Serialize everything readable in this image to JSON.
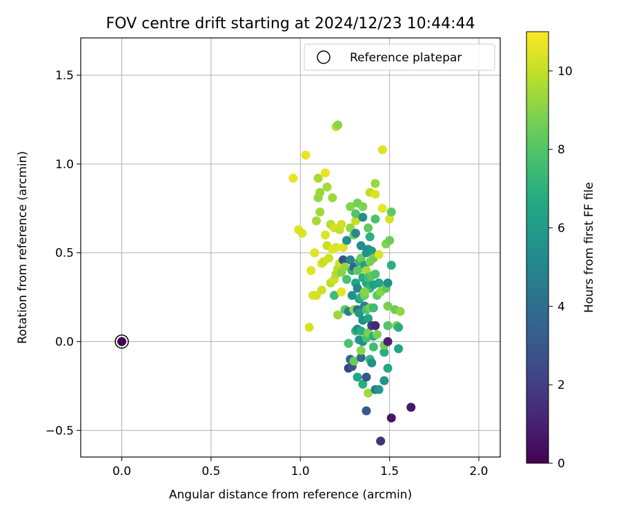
{
  "chart_data": {
    "type": "scatter",
    "title": "FOV centre drift starting at 2024/12/23 10:44:44",
    "xlabel": "Angular distance from reference (arcmin)",
    "ylabel": "Rotation from reference (arcmin)",
    "xlim": [
      -0.23,
      2.12
    ],
    "ylim": [
      -0.65,
      1.71
    ],
    "xticks": [
      0.0,
      0.5,
      1.0,
      1.5,
      2.0
    ],
    "xtick_labels": [
      "0.0",
      "0.5",
      "1.0",
      "1.5",
      "2.0"
    ],
    "yticks": [
      -0.5,
      0.0,
      0.5,
      1.0,
      1.5
    ],
    "ytick_labels": [
      "−0.5",
      "0.0",
      "0.5",
      "1.0",
      "1.5"
    ],
    "grid": true,
    "colormap": "viridis",
    "colorbar": {
      "label": "Hours from first FF file",
      "range": [
        0,
        11
      ],
      "ticks": [
        0,
        2,
        4,
        6,
        8,
        10
      ],
      "tick_labels": [
        "0",
        "2",
        "4",
        "6",
        "8",
        "10"
      ]
    },
    "legend": {
      "position": "top-right",
      "entries": [
        "Reference platepar"
      ]
    },
    "reference": {
      "x": 0.0,
      "y": 0.0,
      "c": 0.0
    },
    "points": [
      [
        0.96,
        0.92,
        10.6
      ],
      [
        0.99,
        0.63,
        10.5
      ],
      [
        1.01,
        0.61,
        10.4
      ],
      [
        1.03,
        1.05,
        10.6
      ],
      [
        1.05,
        0.08,
        10.3
      ],
      [
        1.06,
        0.4,
        10.5
      ],
      [
        1.07,
        0.26,
        10.4
      ],
      [
        1.08,
        0.5,
        10.5
      ],
      [
        1.09,
        0.26,
        10.3
      ],
      [
        1.09,
        0.68,
        9.5
      ],
      [
        1.1,
        0.81,
        9.2
      ],
      [
        1.1,
        0.92,
        9.6
      ],
      [
        1.11,
        0.84,
        9.3
      ],
      [
        1.11,
        0.73,
        9.4
      ],
      [
        1.12,
        0.29,
        10.2
      ],
      [
        1.12,
        0.44,
        10.4
      ],
      [
        1.13,
        0.45,
        10.1
      ],
      [
        1.14,
        0.6,
        10.4
      ],
      [
        1.14,
        0.95,
        10.6
      ],
      [
        1.15,
        0.54,
        10.0
      ],
      [
        1.15,
        0.87,
        9.5
      ],
      [
        1.16,
        0.47,
        10.2
      ],
      [
        1.17,
        0.33,
        9.9
      ],
      [
        1.17,
        0.66,
        9.8
      ],
      [
        1.18,
        0.52,
        10.5
      ],
      [
        1.18,
        0.81,
        9.4
      ],
      [
        1.19,
        0.26,
        7.5
      ],
      [
        1.19,
        0.35,
        10.2
      ],
      [
        1.19,
        0.64,
        10.3
      ],
      [
        1.2,
        1.21,
        10.0
      ],
      [
        1.2,
        0.38,
        9.7
      ],
      [
        1.2,
        0.53,
        10.4
      ],
      [
        1.21,
        1.22,
        9.1
      ],
      [
        1.21,
        0.15,
        9.3
      ],
      [
        1.21,
        0.41,
        9.8
      ],
      [
        1.22,
        0.44,
        10.1
      ],
      [
        1.22,
        0.63,
        10.0
      ],
      [
        1.23,
        0.66,
        10.2
      ],
      [
        1.23,
        0.28,
        10.6
      ],
      [
        1.23,
        0.39,
        9.0
      ],
      [
        1.24,
        0.46,
        2.7
      ],
      [
        1.24,
        0.53,
        10.5
      ],
      [
        1.25,
        0.42,
        9.2
      ],
      [
        1.25,
        0.18,
        8.2
      ],
      [
        1.26,
        0.57,
        5.5
      ],
      [
        1.26,
        0.35,
        7.8
      ],
      [
        1.27,
        -0.15,
        2.0
      ],
      [
        1.27,
        -0.01,
        7.8
      ],
      [
        1.27,
        0.17,
        4.8
      ],
      [
        1.28,
        -0.1,
        3.5
      ],
      [
        1.28,
        0.64,
        9.2
      ],
      [
        1.28,
        0.76,
        9.0
      ],
      [
        1.28,
        0.46,
        5.0
      ],
      [
        1.29,
        -0.14,
        2.8
      ],
      [
        1.29,
        0.26,
        5.5
      ],
      [
        1.29,
        0.4,
        7.0
      ],
      [
        1.3,
        -0.11,
        8.5
      ],
      [
        1.3,
        0.18,
        9.3
      ],
      [
        1.3,
        0.42,
        3.5
      ],
      [
        1.3,
        0.6,
        8.8
      ],
      [
        1.31,
        0.06,
        7.2
      ],
      [
        1.31,
        0.33,
        6.5
      ],
      [
        1.31,
        0.61,
        5.2
      ],
      [
        1.31,
        0.68,
        10.0
      ],
      [
        1.31,
        0.72,
        8.0
      ],
      [
        1.32,
        -0.2,
        6.5
      ],
      [
        1.32,
        0.07,
        5.5
      ],
      [
        1.32,
        0.18,
        4.2
      ],
      [
        1.32,
        0.3,
        5.0
      ],
      [
        1.32,
        0.4,
        8.2
      ],
      [
        1.32,
        0.78,
        8.6
      ],
      [
        1.33,
        0.01,
        5.8
      ],
      [
        1.33,
        0.16,
        6.0
      ],
      [
        1.33,
        0.45,
        7.2
      ],
      [
        1.33,
        0.24,
        6.0
      ],
      [
        1.34,
        -0.09,
        3.8
      ],
      [
        1.34,
        -0.05,
        9.0
      ],
      [
        1.34,
        0.06,
        6.8
      ],
      [
        1.34,
        0.25,
        7.0
      ],
      [
        1.34,
        0.47,
        8.5
      ],
      [
        1.35,
        -0.24,
        6.8
      ],
      [
        1.35,
        0.0,
        5.5
      ],
      [
        1.35,
        0.12,
        5.3
      ],
      [
        1.35,
        0.36,
        6.8
      ],
      [
        1.35,
        0.7,
        5.3
      ],
      [
        1.35,
        0.76,
        8.9
      ],
      [
        1.36,
        0.2,
        4.7
      ],
      [
        1.36,
        0.26,
        8.6
      ],
      [
        1.36,
        0.43,
        6.2
      ],
      [
        1.37,
        -0.2,
        3.0
      ],
      [
        1.37,
        -0.39,
        3.0
      ],
      [
        1.37,
        0.02,
        7.8
      ],
      [
        1.37,
        0.18,
        7.9
      ],
      [
        1.37,
        0.33,
        6.7
      ],
      [
        1.37,
        0.4,
        9.6
      ],
      [
        1.37,
        0.5,
        5.8
      ],
      [
        1.38,
        -0.29,
        9.4
      ],
      [
        1.38,
        0.05,
        8.8
      ],
      [
        1.38,
        0.13,
        6.4
      ],
      [
        1.38,
        0.36,
        7.6
      ],
      [
        1.38,
        0.52,
        5.4
      ],
      [
        1.38,
        0.64,
        8.3
      ],
      [
        1.39,
        -0.1,
        7.2
      ],
      [
        1.39,
        0.19,
        8.6
      ],
      [
        1.39,
        0.3,
        7.4
      ],
      [
        1.39,
        0.45,
        8.8
      ],
      [
        1.39,
        0.59,
        7.0
      ],
      [
        1.39,
        0.84,
        9.9
      ],
      [
        1.4,
        -0.12,
        5.5
      ],
      [
        1.4,
        0.09,
        2.0
      ],
      [
        1.4,
        0.37,
        8.2
      ],
      [
        1.4,
        0.51,
        6.0
      ],
      [
        1.41,
        -0.03,
        7.6
      ],
      [
        1.41,
        0.03,
        6.8
      ],
      [
        1.41,
        0.19,
        7.5
      ],
      [
        1.41,
        0.32,
        6.2
      ],
      [
        1.41,
        0.47,
        8.6
      ],
      [
        1.42,
        -0.27,
        4.5
      ],
      [
        1.42,
        0.09,
        1.2
      ],
      [
        1.42,
        0.38,
        7.9
      ],
      [
        1.42,
        0.69,
        7.8
      ],
      [
        1.42,
        0.89,
        9.3
      ],
      [
        1.42,
        0.83,
        10.4
      ],
      [
        1.43,
        0.04,
        8.8
      ],
      [
        1.43,
        0.26,
        8.2
      ],
      [
        1.44,
        -0.27,
        6.0
      ],
      [
        1.44,
        0.33,
        6.5
      ],
      [
        1.44,
        0.49,
        10.4
      ],
      [
        1.45,
        -0.56,
        1.5
      ],
      [
        1.45,
        0.28,
        9.0
      ],
      [
        1.46,
        1.08,
        10.5
      ],
      [
        1.46,
        0.75,
        10.6
      ],
      [
        1.47,
        -0.06,
        6.8
      ],
      [
        1.47,
        -0.02,
        8.6
      ],
      [
        1.47,
        -0.22,
        5.7
      ],
      [
        1.48,
        0.3,
        8.3
      ],
      [
        1.48,
        0.55,
        8.9
      ],
      [
        1.49,
        -0.15,
        6.6
      ],
      [
        1.49,
        0.0,
        1.0
      ],
      [
        1.49,
        0.09,
        8.0
      ],
      [
        1.49,
        0.2,
        8.8
      ],
      [
        1.49,
        0.33,
        5.5
      ],
      [
        1.5,
        0.57,
        8.5
      ],
      [
        1.5,
        0.69,
        10.3
      ],
      [
        1.51,
        -0.43,
        0.6
      ],
      [
        1.51,
        0.43,
        7.0
      ],
      [
        1.51,
        0.73,
        8.3
      ],
      [
        1.53,
        0.18,
        8.5
      ],
      [
        1.54,
        0.09,
        8.8
      ],
      [
        1.55,
        0.08,
        6.8
      ],
      [
        1.55,
        -0.04,
        6.5
      ],
      [
        1.56,
        0.17,
        9.2
      ],
      [
        1.62,
        -0.37,
        0.7
      ],
      [
        1.34,
        0.54,
        5.3
      ],
      [
        1.36,
        0.28,
        9.0
      ]
    ]
  }
}
